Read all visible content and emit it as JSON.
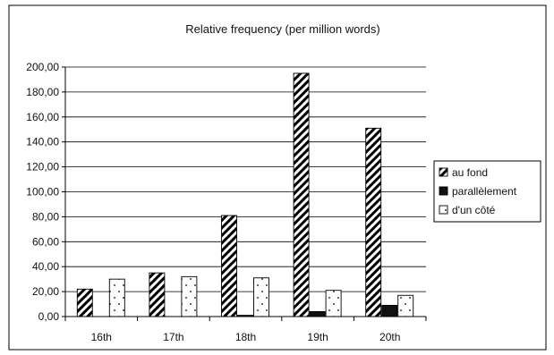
{
  "chart_data": {
    "type": "bar",
    "title": "Relative frequency (per million words)",
    "xlabel": "",
    "ylabel": "",
    "categories": [
      "16th",
      "17th",
      "18th",
      "19th",
      "20th"
    ],
    "ylim": [
      0,
      200
    ],
    "yticks": [
      "0,00",
      "20,00",
      "40,00",
      "60,00",
      "80,00",
      "100,00",
      "120,00",
      "140,00",
      "160,00",
      "180,00",
      "200,00"
    ],
    "grid": true,
    "legend_position": "right",
    "series": [
      {
        "name": "au fond",
        "values": [
          22,
          35,
          81,
          195,
          151
        ],
        "fill": "hatched",
        "color": "#000000"
      },
      {
        "name": "parallèlement",
        "values": [
          0,
          0,
          1,
          4,
          9
        ],
        "fill": "solid",
        "color": "#111111"
      },
      {
        "name": "d'un côté",
        "values": [
          30,
          32,
          31,
          21,
          17
        ],
        "fill": "dotted",
        "color": "#ffffff"
      }
    ]
  }
}
